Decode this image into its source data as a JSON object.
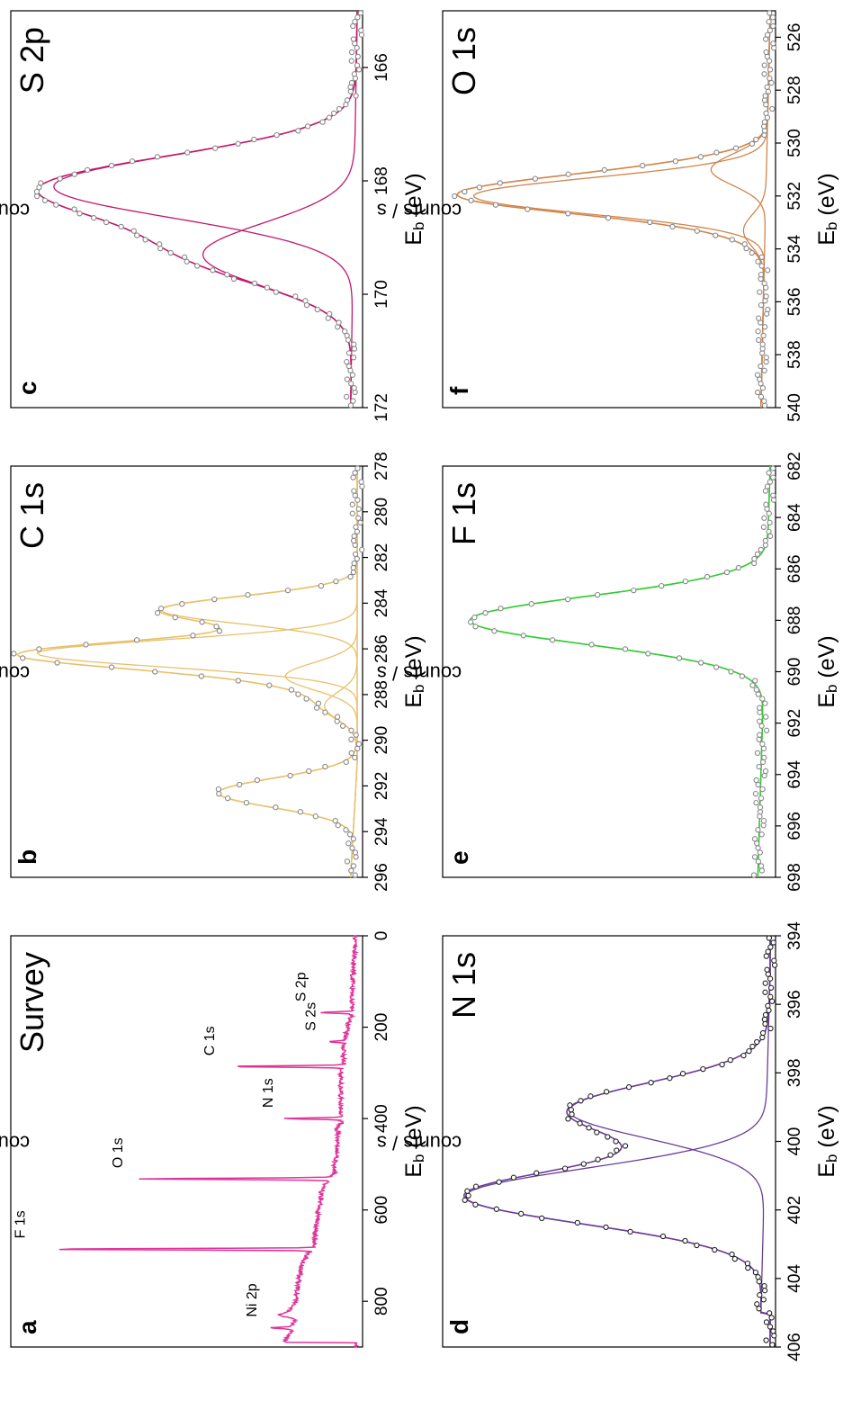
{
  "figure": {
    "ylabel": "counts / s",
    "xlabel_main": "E",
    "xlabel_sub": "b",
    "xlabel_unit": " (eV)"
  },
  "chart_data": [
    {
      "id": "a",
      "type": "line",
      "title": "Survey",
      "panel_label": "a",
      "xlabel": "Eb (eV)",
      "ylabel": "counts / s",
      "xlim": [
        900,
        0
      ],
      "ylim": [
        0,
        100
      ],
      "xticks": [
        800,
        600,
        400,
        200,
        0
      ],
      "xtick_labels": [
        "800",
        "600",
        "400",
        "200",
        "0"
      ],
      "colors": {
        "data": "#e0339a"
      },
      "background": [
        [
          890,
          22
        ],
        [
          860,
          20
        ],
        [
          840,
          19
        ],
        [
          830,
          24
        ],
        [
          820,
          21
        ],
        [
          800,
          19
        ],
        [
          760,
          18
        ],
        [
          720,
          17
        ],
        [
          695,
          15
        ],
        [
          690,
          14
        ],
        [
          680,
          13
        ],
        [
          650,
          13
        ],
        [
          620,
          12
        ],
        [
          600,
          12
        ],
        [
          580,
          11
        ],
        [
          560,
          11
        ],
        [
          545,
          10
        ],
        [
          520,
          7
        ],
        [
          500,
          7
        ],
        [
          480,
          6
        ],
        [
          440,
          6
        ],
        [
          420,
          6
        ],
        [
          410,
          5
        ],
        [
          380,
          5
        ],
        [
          350,
          5
        ],
        [
          310,
          5
        ],
        [
          300,
          5
        ],
        [
          280,
          4
        ],
        [
          260,
          4
        ],
        [
          240,
          4
        ],
        [
          220,
          3.5
        ],
        [
          200,
          3
        ],
        [
          180,
          2
        ],
        [
          170,
          1.5
        ],
        [
          150,
          1.5
        ],
        [
          120,
          1.5
        ],
        [
          100,
          1.5
        ],
        [
          80,
          1.2
        ],
        [
          60,
          1
        ],
        [
          40,
          0.8
        ],
        [
          20,
          0.6
        ],
        [
          0,
          0.4
        ]
      ],
      "peaks": [
        {
          "label": "Ni 2p",
          "x": 858,
          "y": 27
        },
        {
          "label": "F 1s",
          "x": 686,
          "y": 98
        },
        {
          "label": "O 1s",
          "x": 532,
          "y": 68
        },
        {
          "label": "N 1s",
          "x": 400,
          "y": 22
        },
        {
          "label": "C 1s",
          "x": 286,
          "y": 40
        },
        {
          "label": "S 2s",
          "x": 232,
          "y": 9
        },
        {
          "label": "S 2p",
          "x": 168,
          "y": 12
        }
      ]
    },
    {
      "id": "b",
      "type": "line",
      "title": "C 1s",
      "panel_label": "b",
      "xlabel": "Eb (eV)",
      "ylabel": "counts / s",
      "xlim": [
        296,
        278
      ],
      "ylim": [
        0,
        1
      ],
      "xticks": [
        296,
        294,
        292,
        290,
        288,
        286,
        284,
        282,
        280,
        278
      ],
      "xtick_labels": [
        "296",
        "294",
        "292",
        "290",
        "288",
        "286",
        "284",
        "282",
        "280",
        "278"
      ],
      "colors": {
        "data": "#888888",
        "fit": "#e8c06a"
      },
      "baseline": [
        [
          296,
          0.02
        ],
        [
          291,
          0.0
        ]
      ],
      "components": [
        {
          "center": 292.3,
          "fwhm": 1.5,
          "height": 0.42
        },
        {
          "center": 288.5,
          "fwhm": 1.4,
          "height": 0.1
        },
        {
          "center": 287.2,
          "fwhm": 1.4,
          "height": 0.22
        },
        {
          "center": 286.2,
          "fwhm": 1.4,
          "height": 0.98
        },
        {
          "center": 284.3,
          "fwhm": 1.4,
          "height": 0.6
        }
      ]
    },
    {
      "id": "c",
      "type": "line",
      "title": "S 2p",
      "panel_label": "c",
      "xlabel": "Eb (eV)",
      "ylabel": "counts / s",
      "xlim": [
        172,
        165
      ],
      "ylim": [
        0,
        1
      ],
      "xticks": [
        172,
        170,
        168,
        166
      ],
      "xtick_labels": [
        "172",
        "170",
        "168",
        "166"
      ],
      "colors": {
        "data": "#888888",
        "fit": "#c2186b"
      },
      "baseline": [
        [
          172,
          0.02
        ],
        [
          165,
          0.0
        ]
      ],
      "components": [
        {
          "center": 168.1,
          "fwhm": 1.3,
          "height": 0.92
        },
        {
          "center": 169.3,
          "fwhm": 1.3,
          "height": 0.46
        }
      ]
    },
    {
      "id": "d",
      "type": "line",
      "title": "N 1s",
      "panel_label": "d",
      "xlabel": "Eb (eV)",
      "ylabel": "counts / s",
      "xlim": [
        406,
        394
      ],
      "ylim": [
        0,
        1
      ],
      "xticks": [
        406,
        404,
        402,
        400,
        398,
        396,
        394
      ],
      "xtick_labels": [
        "406",
        "404",
        "402",
        "400",
        "398",
        "396",
        "394"
      ],
      "colors": {
        "data": "#222222",
        "fit": "#6a3d9a"
      },
      "baseline": [
        [
          405,
          0.03
        ],
        [
          395,
          0.0
        ]
      ],
      "components": [
        {
          "center": 401.6,
          "fwhm": 1.9,
          "height": 0.97
        },
        {
          "center": 399.1,
          "fwhm": 1.9,
          "height": 0.64
        }
      ]
    },
    {
      "id": "e",
      "type": "line",
      "title": "F 1s",
      "panel_label": "e",
      "xlabel": "Eb (eV)",
      "ylabel": "counts / s",
      "xlim": [
        698,
        682
      ],
      "ylim": [
        0,
        1
      ],
      "xticks": [
        698,
        696,
        694,
        692,
        690,
        688,
        686,
        684,
        682
      ],
      "xtick_labels": [
        "698",
        "696",
        "694",
        "692",
        "690",
        "688",
        "686",
        "684",
        "682"
      ],
      "colors": {
        "data": "#888888",
        "fit": "#33cc33"
      },
      "baseline": [
        [
          698,
          0.04
        ],
        [
          682,
          0.0
        ]
      ],
      "components": [
        {
          "center": 688.0,
          "fwhm": 2.2,
          "height": 0.96
        }
      ]
    },
    {
      "id": "f",
      "type": "line",
      "title": "O 1s",
      "panel_label": "f",
      "xlabel": "Eb (eV)",
      "ylabel": "counts / s",
      "xlim": [
        540,
        525
      ],
      "ylim": [
        0,
        1
      ],
      "xticks": [
        540,
        538,
        536,
        534,
        532,
        530,
        528,
        526
      ],
      "xtick_labels": [
        "540",
        "538",
        "536",
        "534",
        "532",
        "530",
        "528",
        "526"
      ],
      "colors": {
        "data": "#888888",
        "fit": "#d2844a"
      },
      "baseline": [
        [
          540,
          0.03
        ],
        [
          525,
          0.0
        ]
      ],
      "components": [
        {
          "center": 532.0,
          "fwhm": 1.6,
          "height": 0.95
        },
        {
          "center": 531.0,
          "fwhm": 1.4,
          "height": 0.18
        },
        {
          "center": 533.3,
          "fwhm": 1.4,
          "height": 0.07
        }
      ]
    }
  ]
}
